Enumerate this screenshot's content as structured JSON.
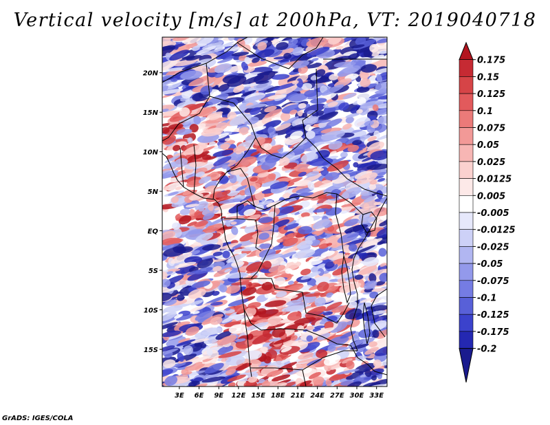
{
  "title": "Vertical velocity [m/s] at 200hPa, VT: 2019040718",
  "credit": "GrADS: IGES/COLA",
  "map": {
    "lat_labels": [
      "20N",
      "15N",
      "10N",
      "5N",
      "EQ",
      "5S",
      "10S",
      "15S"
    ],
    "lat_values": [
      20,
      15,
      10,
      5,
      0,
      -5,
      -10,
      -15
    ],
    "lon_labels": [
      "3E",
      "6E",
      "9E",
      "12E",
      "15E",
      "18E",
      "21E",
      "24E",
      "27E",
      "30E",
      "33E"
    ],
    "lon_values": [
      3,
      6,
      9,
      12,
      15,
      18,
      21,
      24,
      27,
      30,
      33
    ],
    "lon_range": [
      0.4,
      34.6
    ],
    "lat_range": [
      -19.7,
      24.5
    ]
  },
  "colorbar": {
    "labels": [
      "0.175",
      "0.15",
      "0.125",
      "0.1",
      "0.075",
      "0.05",
      "0.025",
      "0.0125",
      "0.005",
      "-0.005",
      "-0.0125",
      "-0.025",
      "-0.05",
      "-0.075",
      "-0.1",
      "-0.125",
      "-0.175",
      "-0.2"
    ],
    "colors": [
      "#b2151f",
      "#c62a33",
      "#d64447",
      "#e25a5c",
      "#eb7a79",
      "#f29997",
      "#f7b6b4",
      "#fbd1cf",
      "#fde9e8",
      "#ffffff",
      "#e6e8fb",
      "#cdd1f7",
      "#b1b6f1",
      "#9399eb",
      "#757ce3",
      "#5860d8",
      "#3b42cc",
      "#2428b2",
      "#1a1b8e"
    ]
  }
}
